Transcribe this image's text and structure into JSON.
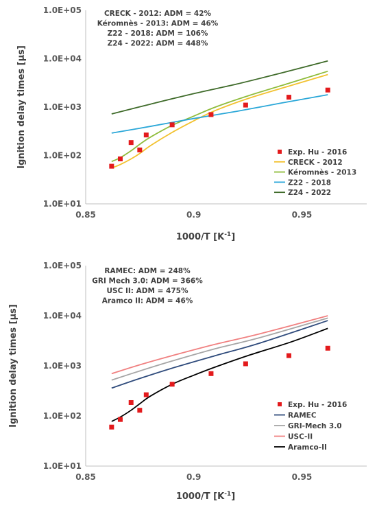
{
  "chart_data": [
    {
      "type": "line",
      "ylabel": "Ignition delay times [µs]",
      "xlabel": "1000/T [K",
      "xlabel_sup": "-1",
      "xlabel_end": "]",
      "yscale": "log",
      "xlim": [
        0.85,
        0.98
      ],
      "ylim": [
        10,
        100000
      ],
      "grid": false,
      "legend_position": "bottom-right",
      "yticks": [
        10,
        100,
        1000,
        10000,
        100000
      ],
      "ytick_labels": [
        "1.0E+01",
        "1.0E+02",
        "1.0E+03",
        "1.0E+04",
        "1.0E+05"
      ],
      "xticks": [
        0.85,
        0.9,
        0.95
      ],
      "xtick_labels": [
        "0.85",
        "0.9",
        "0.95"
      ],
      "annotations": [
        "CRECK - 2012: ADM = 42%",
        "Kéromnès - 2013: ADM = 46%",
        "Z22 - 2018: ADM = 106%",
        "Z24 - 2022: ADM = 448%"
      ],
      "experimental": {
        "name": "Exp. Hu - 2016",
        "color": "#e31a1c",
        "x": [
          0.862,
          0.866,
          0.871,
          0.875,
          0.878,
          0.89,
          0.908,
          0.924,
          0.944,
          0.962
        ],
        "y": [
          60,
          85,
          185,
          130,
          265,
          430,
          700,
          1100,
          1600,
          2250
        ]
      },
      "series": [
        {
          "name": "CRECK - 2012",
          "color": "#f2c12e",
          "x": [
            0.862,
            0.866,
            0.871,
            0.875,
            0.88,
            0.89,
            0.9,
            0.91,
            0.925,
            0.945,
            0.962
          ],
          "y": [
            55,
            65,
            85,
            110,
            160,
            300,
            520,
            850,
            1500,
            2800,
            4700
          ]
        },
        {
          "name": "Kéromnès - 2013",
          "color": "#8fbc3c",
          "x": [
            0.862,
            0.866,
            0.871,
            0.875,
            0.88,
            0.89,
            0.9,
            0.91,
            0.925,
            0.945,
            0.962
          ],
          "y": [
            75,
            90,
            125,
            170,
            240,
            420,
            650,
            1000,
            1700,
            3200,
            5500
          ]
        },
        {
          "name": "Z22 - 2018",
          "color": "#2aa7d8",
          "x": [
            0.862,
            0.88,
            0.9,
            0.92,
            0.94,
            0.962
          ],
          "y": [
            290,
            400,
            580,
            820,
            1200,
            1800
          ]
        },
        {
          "name": "Z24 - 2022",
          "color": "#3f6b2a",
          "x": [
            0.862,
            0.88,
            0.9,
            0.92,
            0.94,
            0.962
          ],
          "y": [
            720,
            1150,
            1900,
            3000,
            5000,
            9000
          ]
        }
      ]
    },
    {
      "type": "line",
      "ylabel": "Ignition delay times [µs]",
      "xlabel": "1000/T [K",
      "xlabel_sup": "-1",
      "xlabel_end": "]",
      "yscale": "log",
      "xlim": [
        0.85,
        0.98
      ],
      "ylim": [
        10,
        100000
      ],
      "grid": false,
      "legend_position": "bottom-right",
      "yticks": [
        10,
        100,
        1000,
        10000,
        100000
      ],
      "ytick_labels": [
        "1.0E+01",
        "1.0E+02",
        "1.0E+03",
        "1.0E+04",
        "1.0E+05"
      ],
      "xticks": [
        0.85,
        0.9,
        0.95
      ],
      "xtick_labels": [
        "0.85",
        "0.9",
        "0.95"
      ],
      "annotations": [
        "RAMEC: ADM = 248%",
        "GRI Mech 3.0: ADM = 366%",
        "USC II: ADM = 475%",
        "Aramco II: ADM = 46%"
      ],
      "experimental": {
        "name": "Exp. Hu - 2016",
        "color": "#e31a1c",
        "x": [
          0.862,
          0.866,
          0.871,
          0.875,
          0.878,
          0.89,
          0.908,
          0.924,
          0.944,
          0.962
        ],
        "y": [
          60,
          85,
          185,
          130,
          265,
          430,
          700,
          1100,
          1600,
          2250
        ]
      },
      "series": [
        {
          "name": "RAMEC",
          "color": "#2f4b7c",
          "x": [
            0.862,
            0.875,
            0.89,
            0.91,
            0.93,
            0.962
          ],
          "y": [
            360,
            560,
            900,
            1600,
            2800,
            8000
          ]
        },
        {
          "name": "GRI-Mech 3.0",
          "color": "#a6a6a6",
          "x": [
            0.862,
            0.875,
            0.89,
            0.91,
            0.93,
            0.962
          ],
          "y": [
            520,
            790,
            1250,
            2200,
            3600,
            9000
          ]
        },
        {
          "name": "USC-II",
          "color": "#f08080",
          "x": [
            0.862,
            0.875,
            0.89,
            0.91,
            0.93,
            0.962
          ],
          "y": [
            700,
            1050,
            1600,
            2700,
            4300,
            10000
          ]
        },
        {
          "name": "Aramco-II",
          "color": "#000000",
          "x": [
            0.862,
            0.866,
            0.871,
            0.875,
            0.88,
            0.89,
            0.9,
            0.91,
            0.925,
            0.945,
            0.962
          ],
          "y": [
            78,
            95,
            130,
            175,
            250,
            430,
            650,
            950,
            1600,
            3000,
            5600
          ]
        }
      ]
    }
  ]
}
